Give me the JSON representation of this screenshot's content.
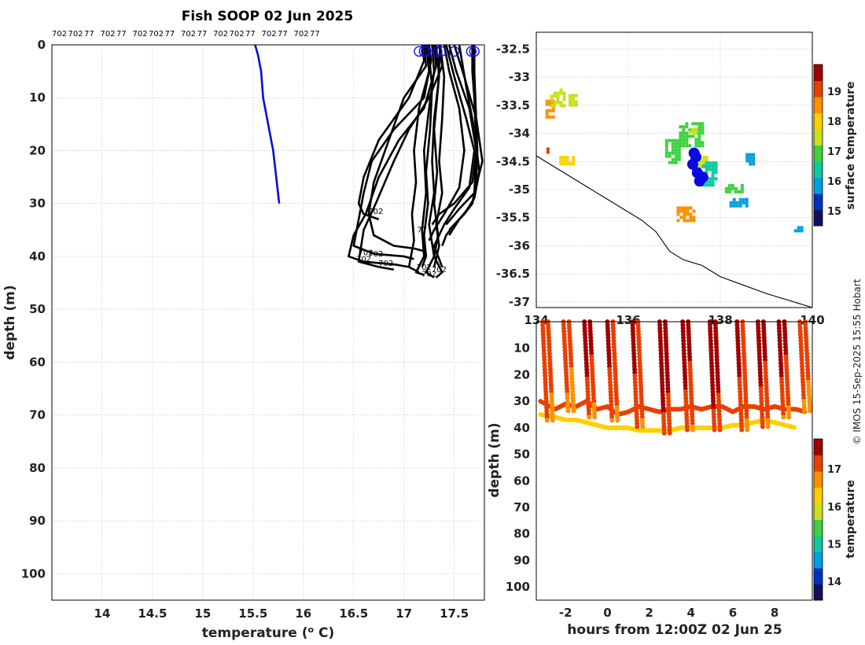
{
  "figure": {
    "title": "Fish SOOP 02 Jun 2025",
    "credit": "© IMOS 15-Sep-2025 15:55 Hobart",
    "top_labels": [
      "702",
      "702",
      "77",
      "702",
      "77",
      "702",
      "702",
      "77",
      "702",
      "77",
      "702",
      "702",
      "77",
      "702",
      "77",
      "702",
      "77"
    ]
  },
  "colormaps": {
    "jet_like": [
      "#10105c",
      "#0030c0",
      "#00a0e0",
      "#10c8a0",
      "#40d040",
      "#c8e020",
      "#ffd000",
      "#ff9000",
      "#e84000",
      "#a00000"
    ]
  },
  "chart_data": [
    {
      "id": "profiles",
      "type": "line",
      "xlabel": "temperature (°C)",
      "ylabel": "depth (m)",
      "xlim": [
        13.5,
        17.8
      ],
      "ylim": [
        0,
        105
      ],
      "y_reversed": true,
      "xticks": [
        "14",
        "14.5",
        "15",
        "15.5",
        "16",
        "16.5",
        "17",
        "17.5"
      ],
      "yticks": [
        "0",
        "10",
        "20",
        "30",
        "40",
        "50",
        "60",
        "70",
        "80",
        "90",
        "100"
      ],
      "grid": true,
      "blue_profile": {
        "x": [
          15.52,
          15.55,
          15.58,
          15.6,
          15.7,
          15.76
        ],
        "y": [
          0,
          2,
          5,
          10,
          20,
          30
        ]
      },
      "black_profiles": [
        {
          "x": [
            17.18,
            17.2,
            17.05,
            16.75,
            16.6,
            16.55,
            16.6,
            16.75
          ],
          "y": [
            0,
            3,
            10,
            18,
            25,
            30,
            32,
            33
          ]
        },
        {
          "x": [
            17.25,
            17.27,
            17.2,
            16.9,
            16.68,
            16.6,
            16.55,
            16.5,
            16.7,
            17.0,
            17.1
          ],
          "y": [
            0,
            3,
            10,
            16,
            22,
            28,
            33,
            38,
            39.5,
            40,
            40.5
          ]
        },
        {
          "x": [
            17.3,
            17.32,
            17.2,
            16.95,
            16.75,
            16.62,
            16.5,
            16.45,
            16.6,
            16.9,
            17.05
          ],
          "y": [
            0,
            4,
            12,
            18,
            25,
            32,
            36,
            40,
            41,
            41.5,
            42
          ]
        },
        {
          "x": [
            17.35,
            17.38,
            17.25,
            17.05,
            16.9,
            16.72,
            16.6,
            16.55,
            16.75,
            16.9
          ],
          "y": [
            0,
            4,
            10,
            16,
            22,
            30,
            35,
            41,
            42,
            42.5
          ]
        },
        {
          "x": [
            17.22,
            17.25,
            17.15,
            17.1,
            17.12,
            17.08,
            17.1,
            17.05,
            17.15
          ],
          "y": [
            0,
            5,
            12,
            20,
            26,
            32,
            37,
            42,
            43
          ]
        },
        {
          "x": [
            17.28,
            17.3,
            17.25,
            17.2,
            17.22,
            17.18,
            17.2,
            17.12,
            17.2
          ],
          "y": [
            0,
            5,
            12,
            20,
            28,
            35,
            40,
            43,
            43.5
          ]
        },
        {
          "x": [
            17.32,
            17.35,
            17.3,
            17.28,
            17.3,
            17.25,
            17.3,
            17.22,
            17.3
          ],
          "y": [
            0,
            6,
            14,
            22,
            28,
            34,
            40,
            43,
            44
          ]
        },
        {
          "x": [
            17.36,
            17.4,
            17.38,
            17.35,
            17.38,
            17.32,
            17.35,
            17.3
          ],
          "y": [
            0,
            6,
            14,
            22,
            28,
            34,
            38,
            42
          ]
        },
        {
          "x": [
            17.4,
            17.45,
            17.55,
            17.6,
            17.55,
            17.4,
            17.3,
            17.25
          ],
          "y": [
            0,
            5,
            12,
            20,
            27,
            32,
            35,
            37
          ]
        },
        {
          "x": [
            17.45,
            17.52,
            17.65,
            17.72,
            17.68,
            17.5,
            17.35,
            17.28
          ],
          "y": [
            0,
            5,
            12,
            20,
            26,
            30,
            32,
            34
          ]
        },
        {
          "x": [
            17.5,
            17.6,
            17.72,
            17.78,
            17.7,
            17.55,
            17.42
          ],
          "y": [
            0,
            6,
            14,
            22,
            28,
            31,
            34
          ]
        },
        {
          "x": [
            17.55,
            17.62,
            17.7,
            17.75,
            17.7,
            17.6,
            17.45
          ],
          "y": [
            0,
            8,
            16,
            24,
            29,
            32,
            35
          ]
        },
        {
          "x": [
            17.68,
            17.68,
            17.7,
            17.72,
            17.7,
            17.68,
            17.6,
            17.5,
            17.42,
            17.38
          ],
          "y": [
            0,
            5,
            10,
            20,
            28,
            30,
            32,
            34,
            36,
            38
          ]
        },
        {
          "x": [
            17.7,
            17.7,
            17.71,
            17.73,
            17.72,
            17.68,
            17.55,
            17.45
          ],
          "y": [
            0,
            5,
            10,
            20,
            26,
            30,
            33,
            36
          ]
        },
        {
          "x": [
            17.24,
            17.28,
            17.26,
            17.22,
            17.24,
            17.2,
            17.22,
            17.18
          ],
          "y": [
            0,
            8,
            16,
            24,
            30,
            36,
            40,
            42
          ]
        },
        {
          "x": [
            17.2,
            17.22,
            17.0,
            16.85,
            16.7,
            16.65,
            16.7,
            16.9,
            17.1,
            17.2
          ],
          "y": [
            0,
            4,
            10,
            18,
            26,
            32,
            36,
            38,
            38.5,
            39
          ]
        },
        {
          "x": [
            17.36,
            17.34,
            17.3,
            17.33,
            17.3,
            17.34,
            17.3,
            17.38,
            17.32
          ],
          "y": [
            0,
            8,
            16,
            24,
            30,
            36,
            40,
            43,
            44
          ]
        },
        {
          "x": [
            17.42,
            17.5,
            17.62,
            17.7,
            17.65,
            17.5,
            17.4,
            17.3,
            17.38
          ],
          "y": [
            0,
            6,
            14,
            20,
            27,
            31,
            34,
            38,
            42
          ]
        }
      ],
      "markers": {
        "x": [
          17.15,
          17.2,
          17.22,
          17.33,
          17.37,
          17.5,
          17.67,
          17.7
        ],
        "y": [
          0.5,
          0.5,
          0.5,
          0.5,
          0.5,
          0.5,
          0.5,
          0.5
        ]
      },
      "annotations": [
        {
          "x": 16.72,
          "y": 32,
          "text": "702"
        },
        {
          "x": 17.18,
          "y": 35.5,
          "text": "77"
        },
        {
          "x": 16.62,
          "y": 39.8,
          "text": "702"
        },
        {
          "x": 16.72,
          "y": 40,
          "text": "702"
        },
        {
          "x": 16.6,
          "y": 41,
          "text": "702"
        },
        {
          "x": 16.82,
          "y": 41.8,
          "text": "702"
        },
        {
          "x": 17.2,
          "y": 42.5,
          "text": "702"
        },
        {
          "x": 17.35,
          "y": 43,
          "text": "702"
        },
        {
          "x": 17.25,
          "y": 43.8,
          "text": "702"
        }
      ]
    },
    {
      "id": "map",
      "type": "heatmap",
      "xlim": [
        134,
        140
      ],
      "ylim": [
        -37.1,
        -32.2
      ],
      "xticks": [
        "134",
        "136",
        "138",
        "140"
      ],
      "yticks": [
        "-32.5",
        "-33",
        "-33.5",
        "-34",
        "-34.5",
        "-35",
        "-35.5",
        "-36",
        "-36.5",
        "-37"
      ],
      "colorbar_label": "surface temperature",
      "colorbar_range": [
        14.5,
        19.9
      ],
      "colorbar_ticks": [
        "15",
        "16",
        "17",
        "18",
        "19"
      ],
      "coastline_lon_lat": [
        [
          134,
          -34.4
        ],
        [
          134.7,
          -34.75
        ],
        [
          135.4,
          -35.1
        ],
        [
          135.9,
          -35.35
        ],
        [
          136.3,
          -35.55
        ],
        [
          136.6,
          -35.75
        ],
        [
          136.9,
          -36.1
        ],
        [
          137.2,
          -36.25
        ],
        [
          137.6,
          -36.35
        ],
        [
          138.0,
          -36.55
        ],
        [
          138.5,
          -36.7
        ],
        [
          139.0,
          -36.85
        ],
        [
          139.6,
          -37.0
        ],
        [
          140,
          -37.1
        ]
      ],
      "sst_patches": [
        {
          "lon": [
            134.2,
            134.4
          ],
          "lat": [
            -33.4,
            -33.7
          ],
          "value": 18.5
        },
        {
          "lon": [
            134.3,
            134.6
          ],
          "lat": [
            -33.2,
            -33.5
          ],
          "value": 17.6
        },
        {
          "lon": [
            134.7,
            134.9
          ],
          "lat": [
            -33.3,
            -33.5
          ],
          "value": 17.2
        },
        {
          "lon": [
            134.5,
            134.8
          ],
          "lat": [
            -34.4,
            -34.55
          ],
          "value": 18.2
        },
        {
          "lon": [
            136.8,
            137.1
          ],
          "lat": [
            -34.1,
            -34.5
          ],
          "value": 17.1
        },
        {
          "lon": [
            137.1,
            137.6
          ],
          "lat": [
            -33.8,
            -34.2
          ],
          "value": 16.9
        },
        {
          "lon": [
            137.4,
            137.7
          ],
          "lat": [
            -34.4,
            -34.6
          ],
          "value": 17.4
        },
        {
          "lon": [
            137.6,
            137.9
          ],
          "lat": [
            -34.5,
            -34.9
          ],
          "value": 16.2
        },
        {
          "lon": [
            138.1,
            138.5
          ],
          "lat": [
            -34.9,
            -35.05
          ],
          "value": 16.8
        },
        {
          "lon": [
            137.05,
            137.4
          ],
          "lat": [
            -35.3,
            -35.55
          ],
          "value": 18.4
        },
        {
          "lon": [
            138.2,
            138.6
          ],
          "lat": [
            -35.15,
            -35.3
          ],
          "value": 15.6
        },
        {
          "lon": [
            138.55,
            138.75
          ],
          "lat": [
            -34.35,
            -34.55
          ],
          "value": 15.8
        },
        {
          "lon": [
            139.6,
            139.8
          ],
          "lat": [
            -35.65,
            -35.75
          ],
          "value": 16.1
        },
        {
          "lon": [
            137.3,
            137.5
          ],
          "lat": [
            -33.9,
            -34.0
          ],
          "value": 17.6
        },
        {
          "lon": [
            134.15,
            134.25
          ],
          "lat": [
            -34.25,
            -34.32
          ],
          "value": 19.2
        }
      ],
      "track_lon_lat": [
        [
          137.43,
          -34.35
        ],
        [
          137.47,
          -34.42
        ],
        [
          137.4,
          -34.55
        ],
        [
          137.5,
          -34.7
        ],
        [
          137.62,
          -34.78
        ],
        [
          137.55,
          -34.85
        ]
      ]
    },
    {
      "id": "section",
      "type": "scatter",
      "xlabel": "hours from 12:00Z 02 Jun 25",
      "ylabel": "depth (m)",
      "xlim": [
        -3.4,
        9.8
      ],
      "ylim": [
        0,
        105
      ],
      "y_reversed": true,
      "xticks": [
        "-2",
        "0",
        "2",
        "4",
        "6",
        "8"
      ],
      "yticks": [
        "10",
        "20",
        "30",
        "40",
        "50",
        "60",
        "70",
        "80",
        "90",
        "100"
      ],
      "colorbar_label": "temperature",
      "colorbar_range": [
        13.5,
        17.8
      ],
      "colorbar_ticks": [
        "14",
        "15",
        "16",
        "17"
      ],
      "casts": [
        {
          "t": -3.1,
          "bottom": 38,
          "surf": 17.3,
          "deep": 16.9
        },
        {
          "t": -2.1,
          "bottom": 34,
          "surf": 17.2,
          "deep": 16.8
        },
        {
          "t": -1.1,
          "bottom": 36,
          "surf": 17.6,
          "deep": 16.9
        },
        {
          "t": 0.0,
          "bottom": 38,
          "surf": 17.5,
          "deep": 16.9
        },
        {
          "t": 1.2,
          "bottom": 40,
          "surf": 17.5,
          "deep": 17.0
        },
        {
          "t": 2.5,
          "bottom": 43,
          "surf": 17.8,
          "deep": 17.1
        },
        {
          "t": 3.6,
          "bottom": 42,
          "surf": 17.6,
          "deep": 17.0
        },
        {
          "t": 4.9,
          "bottom": 42,
          "surf": 17.8,
          "deep": 17.1
        },
        {
          "t": 6.2,
          "bottom": 41,
          "surf": 17.5,
          "deep": 17.0
        },
        {
          "t": 7.2,
          "bottom": 40,
          "surf": 17.6,
          "deep": 17.0
        },
        {
          "t": 8.2,
          "bottom": 37,
          "surf": 17.6,
          "deep": 16.9
        },
        {
          "t": 9.2,
          "bottom": 34,
          "surf": 17.3,
          "deep": 16.8
        }
      ],
      "thermocline": [
        {
          "t": [
            -3.2,
            -2.5,
            -2,
            -1.5,
            -1,
            -0.5,
            0,
            0.5,
            1,
            1.5,
            2,
            2.5,
            3,
            3.5,
            4,
            4.5,
            5,
            5.5,
            6,
            6.5,
            7,
            7.5,
            8,
            8.5,
            9,
            9.5
          ],
          "depth": [
            30,
            33,
            31,
            32,
            30,
            33,
            32,
            35,
            34,
            32,
            33,
            34,
            33,
            33,
            32,
            33,
            32,
            32,
            34,
            32,
            32,
            33,
            32,
            33,
            33,
            34
          ],
          "value": 17.0
        },
        {
          "t": [
            -3.2,
            -2.5,
            -2,
            -1.5,
            -1,
            -0.5,
            0,
            0.5,
            1,
            1.5,
            2,
            2.5,
            3,
            3.5,
            4,
            4.5,
            5,
            5.5,
            6,
            6.5,
            7,
            7.5,
            8,
            8.5,
            9
          ],
          "depth": [
            35,
            36,
            37,
            37,
            38,
            39,
            40,
            40,
            40,
            41,
            41,
            41,
            41,
            40,
            40,
            40,
            40,
            40,
            39,
            39,
            38,
            37,
            38,
            39,
            40
          ],
          "value": 16.4
        }
      ]
    }
  ]
}
